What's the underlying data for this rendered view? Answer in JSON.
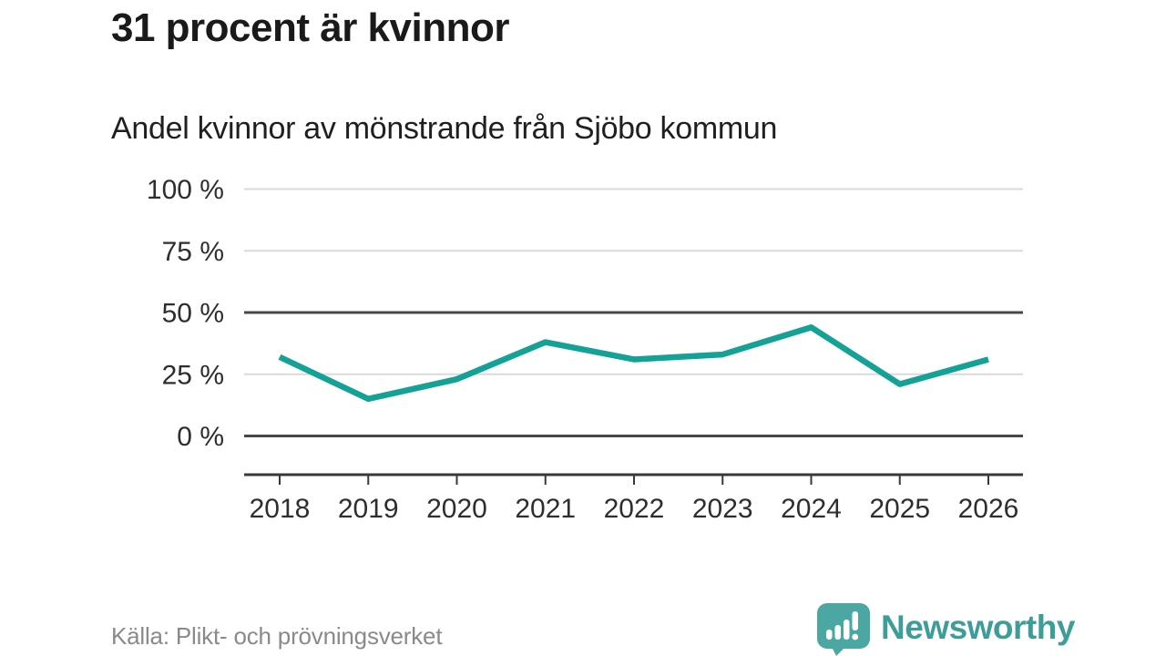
{
  "header": {
    "title": "31 procent är kvinnor",
    "subtitle": "Andel kvinnor av mönstrande från Sjöbo kommun"
  },
  "chart_data": {
    "type": "line",
    "title": "31 procent är kvinnor",
    "subtitle": "Andel kvinnor av mönstrande från Sjöbo kommun",
    "x": [
      "2018",
      "2019",
      "2020",
      "2021",
      "2022",
      "2023",
      "2024",
      "2025",
      "2026"
    ],
    "series": [
      {
        "name": "Andel kvinnor av mönstrande",
        "values": [
          32,
          15,
          23,
          38,
          31,
          33,
          44,
          21,
          31
        ]
      }
    ],
    "unit": "%",
    "ylim": [
      0,
      100
    ],
    "yticks": [
      0,
      25,
      50,
      75,
      100
    ],
    "ytick_suffix": " %",
    "emphasized_gridlines": [
      0,
      50
    ],
    "grid": true,
    "legend_position": "none",
    "colors": {
      "line": "#14a196",
      "grid_light": "#dadada",
      "grid_dark": "#474747",
      "axis": "#383838"
    }
  },
  "footer": {
    "source": "Källa: Plikt- och prövningsverket",
    "logo": {
      "text": "Newsworthy",
      "icon": "newsworthy-speech-bubble-chart-icon",
      "bubble_color": "#4aa7a1",
      "text_color": "#3e9d98"
    }
  }
}
